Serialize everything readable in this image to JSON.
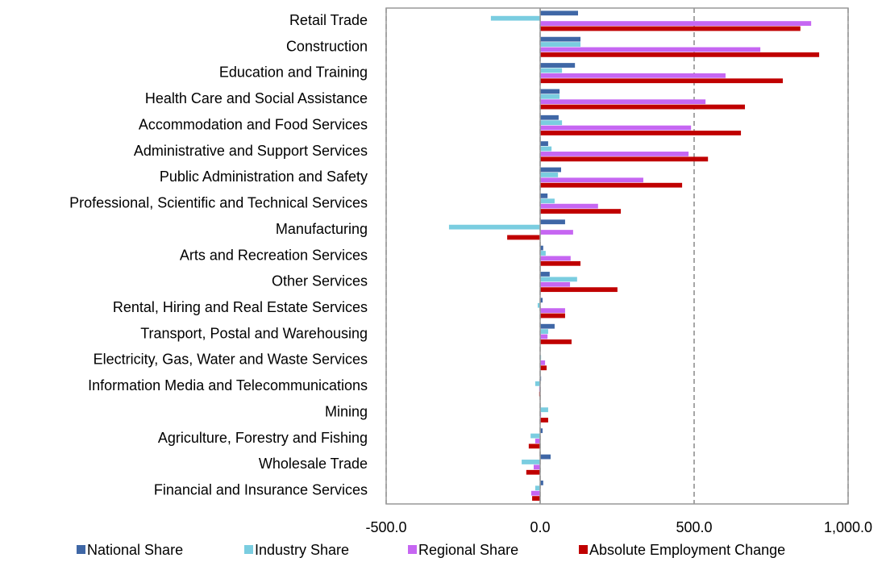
{
  "chart_data": {
    "type": "hbar",
    "categories": [
      "Retail Trade",
      "Construction",
      "Education and Training",
      "Health Care and Social Assistance",
      "Accommodation and Food Services",
      "Administrative and Support Services",
      "Public Administration and Safety",
      "Professional, Scientific and Technical Services",
      "Manufacturing",
      "Arts and Recreation Services",
      "Other Services",
      "Rental, Hiring and Real Estate Services",
      "Transport, Postal and Warehousing",
      "Electricity, Gas, Water and Waste Services",
      "Information Media and Telecommunications",
      "Mining",
      "Agriculture, Forestry and Fishing",
      "Wholesale Trade",
      "Financial and Insurance Services"
    ],
    "series": [
      {
        "name": "National Share",
        "color": "#3f67a6",
        "values": [
          123,
          131,
          113,
          63,
          60,
          26,
          68,
          24,
          81,
          10,
          31,
          8,
          47,
          1,
          3,
          0,
          8,
          34,
          10
        ]
      },
      {
        "name": "Industry Share",
        "color": "#7acde0",
        "values": [
          -160,
          131,
          71,
          63,
          71,
          37,
          58,
          47,
          -296,
          18,
          120,
          -8,
          26,
          3,
          -16,
          26,
          -31,
          -60,
          -16
        ]
      },
      {
        "name": "Regional Share",
        "color": "#c666f2",
        "values": [
          880,
          715,
          602,
          537,
          490,
          482,
          335,
          188,
          107,
          99,
          97,
          81,
          24,
          16,
          -3,
          3,
          -16,
          -21,
          -29
        ]
      },
      {
        "name": "Absolute Employment Change",
        "color": "#c00000",
        "values": [
          845,
          906,
          788,
          665,
          652,
          545,
          461,
          262,
          -107,
          131,
          251,
          81,
          102,
          21,
          -3,
          26,
          -37,
          -45,
          -26
        ]
      }
    ],
    "xlim": [
      -500,
      1000
    ],
    "xticks": [
      {
        "value": -500,
        "label": "-500.0"
      },
      {
        "value": 0,
        "label": "0.0"
      },
      {
        "value": 500,
        "label": "500.0"
      },
      {
        "value": 1000,
        "label": "1,000.0"
      }
    ],
    "grid": true,
    "legend": "bottom"
  }
}
